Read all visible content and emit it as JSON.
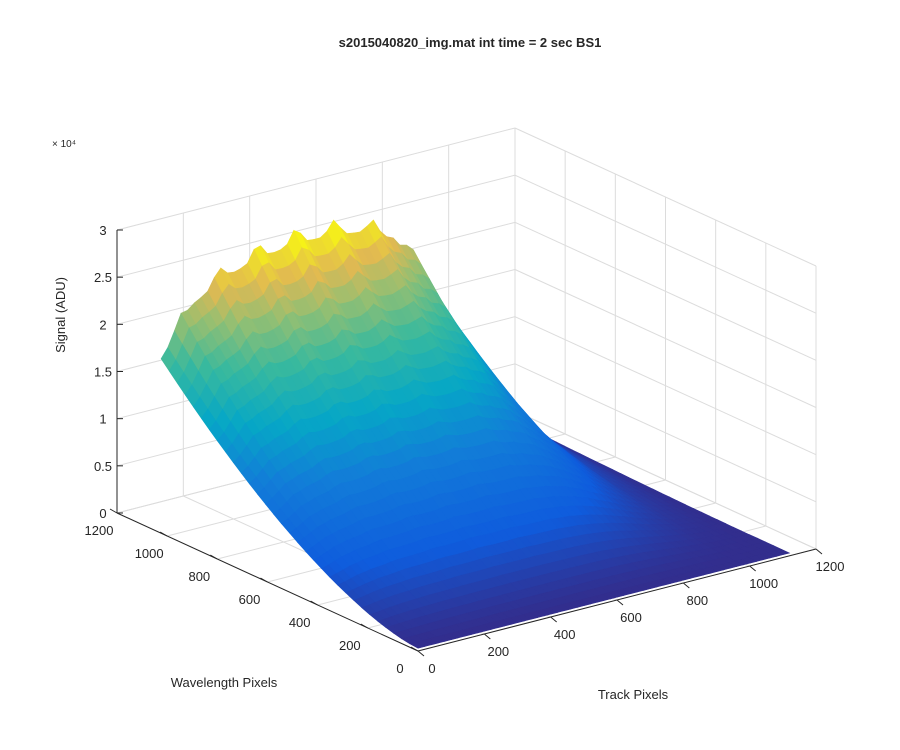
{
  "chart_data": {
    "type": "surface",
    "title": "s2015040820_img.mat int time = 2 sec   BS1",
    "xlabel": "Track Pixels",
    "ylabel": "Wavelength Pixels",
    "zlabel": "Signal (ADU)",
    "zscale_label": "× 10⁴",
    "xlim": [
      0,
      1200
    ],
    "ylim": [
      0,
      1200
    ],
    "zlim": [
      0,
      30000
    ],
    "x_ticks": [
      "0",
      "200",
      "400",
      "600",
      "800",
      "1000",
      "1200"
    ],
    "y_ticks": [
      "0",
      "200",
      "400",
      "600",
      "800",
      "1000",
      "1200"
    ],
    "z_ticks": [
      "0",
      "0.5",
      "1",
      "1.5",
      "2",
      "2.5",
      "3"
    ],
    "z_tick_values": [
      0,
      5000,
      10000,
      15000,
      20000,
      25000,
      30000
    ],
    "grid": true,
    "colormap": "parula",
    "surface_profile": {
      "description_points_x": [
        0,
        100,
        200,
        300,
        400,
        500,
        600,
        700,
        800,
        900,
        1000,
        1100,
        1120
      ],
      "description_points_signal_at_y_max": [
        18500,
        23500,
        25500,
        26500,
        27000,
        27000,
        26500,
        25000,
        20000,
        12000,
        5000,
        1200,
        800
      ],
      "y_range": [
        0,
        1024
      ],
      "x_range": [
        0,
        1120
      ]
    },
    "colors": {
      "low": "#352a87",
      "mid_blue": "#0f5cdd",
      "cyan": "#06a7c6",
      "green": "#64bc76",
      "orange": "#e1b93c",
      "yellow": "#f9fb0e"
    }
  }
}
